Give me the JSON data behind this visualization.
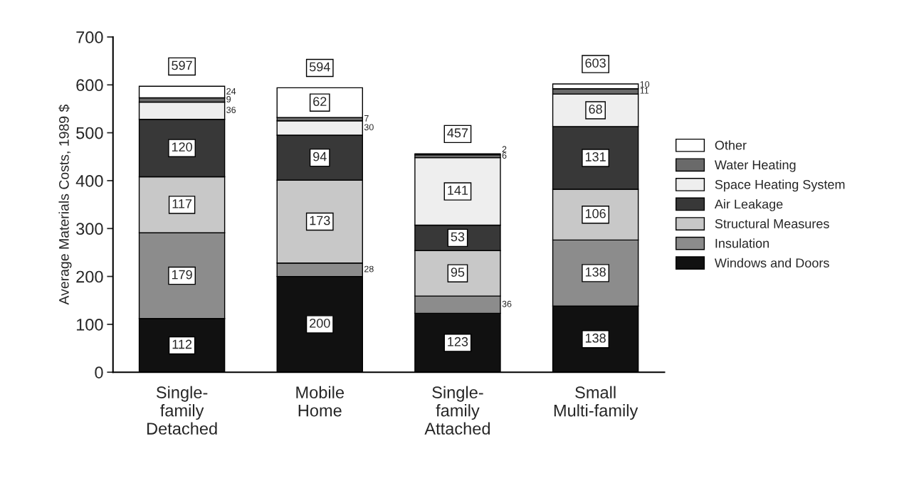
{
  "chart_data": {
    "type": "bar",
    "stacked": true,
    "ylabel": "Average Materials Costs, 1989 $",
    "categories": [
      "Single-\nfamily\nDetached",
      "Mobile\nHome",
      "Single-\nfamily\nAttached",
      "Small\nMulti-family"
    ],
    "series": [
      {
        "name": "Windows and Doors",
        "color": "#111111",
        "values": [
          112,
          200,
          123,
          138
        ]
      },
      {
        "name": "Insulation",
        "color": "#8c8c8c",
        "values": [
          179,
          28,
          36,
          138
        ]
      },
      {
        "name": "Structural Measures",
        "color": "#c8c8c8",
        "values": [
          117,
          173,
          95,
          106
        ]
      },
      {
        "name": "Air Leakage",
        "color": "#383838",
        "values": [
          120,
          94,
          53,
          131
        ]
      },
      {
        "name": "Space Heating System",
        "color": "#eeeeee",
        "values": [
          36,
          30,
          141,
          68
        ]
      },
      {
        "name": "Water Heating",
        "color": "#6a6a6a",
        "values": [
          9,
          7,
          6,
          11
        ]
      },
      {
        "name": "Other",
        "color": "#ffffff",
        "values": [
          24,
          62,
          2,
          10
        ]
      }
    ],
    "totals": [
      "597",
      "594",
      "457",
      "603"
    ],
    "data_labels": true,
    "ylim": [
      0,
      700
    ],
    "yticks": [
      0,
      100,
      200,
      300,
      400,
      500,
      600,
      700
    ],
    "grid": false,
    "legend": "right"
  }
}
